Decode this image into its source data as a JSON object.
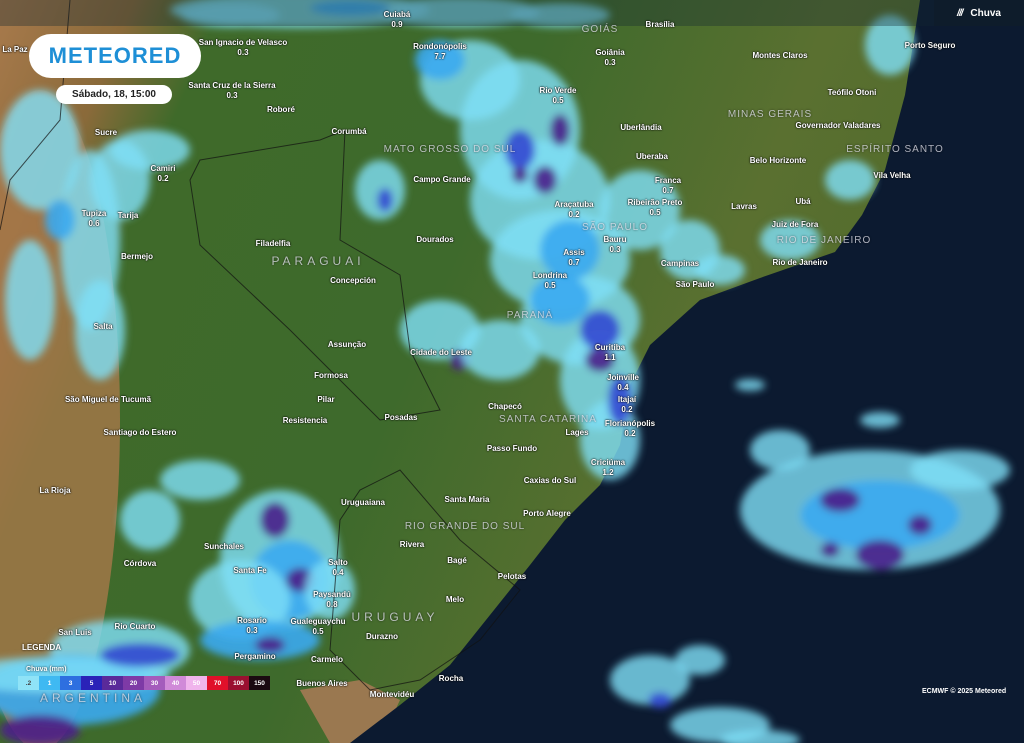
{
  "header": {
    "brand": "METEORED",
    "datetime": "Sábado, 18, 15:00",
    "layer_label": "Chuva",
    "layer_icon": "rain-icon"
  },
  "legend": {
    "title": "LEGENDA",
    "subtitle": "Chuva (mm)",
    "steps": [
      {
        "label": ".2",
        "color": "#8fe3f7"
      },
      {
        "label": "1",
        "color": "#3fb9f2"
      },
      {
        "label": "3",
        "color": "#2e6fe0"
      },
      {
        "label": "5",
        "color": "#2a22b8"
      },
      {
        "label": "10",
        "color": "#5a2a9a"
      },
      {
        "label": "20",
        "color": "#7e3aa6"
      },
      {
        "label": "30",
        "color": "#a45cbc"
      },
      {
        "label": "40",
        "color": "#d08ad8"
      },
      {
        "label": "50",
        "color": "#f0b4ec"
      },
      {
        "label": "70",
        "color": "#e0102a"
      },
      {
        "label": "100",
        "color": "#9a1030"
      },
      {
        "label": "150",
        "color": "#1a0a10"
      }
    ]
  },
  "credit": "ECMWF © 2025 Meteored",
  "regions": [
    "MATO GROSSO DO SUL",
    "GOIÁS",
    "MINAS GERAIS",
    "ESPÍRITO SANTO",
    "RIO DE JANEIRO",
    "SÃO PAULO",
    "PARANÁ",
    "SANTA CATARINA",
    "RIO GRANDE DO SUL",
    "URUGUAY",
    "PARAGUAI",
    "ARGENTINA"
  ],
  "cities": [
    {
      "name": "Cuiabá",
      "value": "0.9"
    },
    {
      "name": "Rondonópolis",
      "value": "7.7"
    },
    {
      "name": "Brasília",
      "value": ""
    },
    {
      "name": "Goiânia",
      "value": "0.3"
    },
    {
      "name": "Rio Verde",
      "value": "0.5"
    },
    {
      "name": "Uberlândia",
      "value": ""
    },
    {
      "name": "Uberaba",
      "value": ""
    },
    {
      "name": "Franca",
      "value": "0.7"
    },
    {
      "name": "Ribeirão Preto",
      "value": "0.5"
    },
    {
      "name": "Araçatuba",
      "value": "0.2"
    },
    {
      "name": "Campo Grande",
      "value": ""
    },
    {
      "name": "Montes Claros",
      "value": ""
    },
    {
      "name": "Porto Seguro",
      "value": ""
    },
    {
      "name": "Teófilo Otoni",
      "value": ""
    },
    {
      "name": "Governador Valadares",
      "value": ""
    },
    {
      "name": "Belo Horizonte",
      "value": ""
    },
    {
      "name": "Vila Velha",
      "value": ""
    },
    {
      "name": "Lavras",
      "value": ""
    },
    {
      "name": "Ubá",
      "value": ""
    },
    {
      "name": "Juiz de Fora",
      "value": ""
    },
    {
      "name": "Rio de Janeiro",
      "value": ""
    },
    {
      "name": "Bauru",
      "value": "0.3"
    },
    {
      "name": "Campinas",
      "value": ""
    },
    {
      "name": "São Paulo",
      "value": ""
    },
    {
      "name": "Assis",
      "value": "0.7"
    },
    {
      "name": "Londrina",
      "value": "0.5"
    },
    {
      "name": "Dourados",
      "value": ""
    },
    {
      "name": "Curitiba",
      "value": "1.1"
    },
    {
      "name": "Cidade do Leste",
      "value": ""
    },
    {
      "name": "Joinville",
      "value": "0.4"
    },
    {
      "name": "Itajaí",
      "value": "0.2"
    },
    {
      "name": "Chapecó",
      "value": ""
    },
    {
      "name": "Lages",
      "value": ""
    },
    {
      "name": "Florianópolis",
      "value": "0.2"
    },
    {
      "name": "Passo Fundo",
      "value": ""
    },
    {
      "name": "Criciúma",
      "value": "1.2"
    },
    {
      "name": "Caxias do Sul",
      "value": ""
    },
    {
      "name": "Santa Maria",
      "value": ""
    },
    {
      "name": "Uruguaiana",
      "value": ""
    },
    {
      "name": "Porto Alegre",
      "value": ""
    },
    {
      "name": "Rivera",
      "value": ""
    },
    {
      "name": "Bagé",
      "value": ""
    },
    {
      "name": "Pelotas",
      "value": ""
    },
    {
      "name": "Salto",
      "value": "0.4"
    },
    {
      "name": "Paysandú",
      "value": "0.8"
    },
    {
      "name": "Melo",
      "value": ""
    },
    {
      "name": "Gualeguaychu",
      "value": "0.5"
    },
    {
      "name": "Durazno",
      "value": ""
    },
    {
      "name": "Carmelo",
      "value": ""
    },
    {
      "name": "Buenos Aires",
      "value": ""
    },
    {
      "name": "Rocha",
      "value": ""
    },
    {
      "name": "Montevidéu",
      "value": ""
    },
    {
      "name": "Rosario",
      "value": "0.3"
    },
    {
      "name": "Santa Fe",
      "value": ""
    },
    {
      "name": "Sunchales",
      "value": ""
    },
    {
      "name": "Córdova",
      "value": ""
    },
    {
      "name": "Rio Cuarto",
      "value": ""
    },
    {
      "name": "San Luis",
      "value": ""
    },
    {
      "name": "Pergamino",
      "value": ""
    },
    {
      "name": "La Rioja",
      "value": ""
    },
    {
      "name": "Santiago do Estero",
      "value": ""
    },
    {
      "name": "São Miguel de Tucumã",
      "value": ""
    },
    {
      "name": "Salta",
      "value": ""
    },
    {
      "name": "Resistencia",
      "value": ""
    },
    {
      "name": "Pilar",
      "value": ""
    },
    {
      "name": "Formosa",
      "value": ""
    },
    {
      "name": "Assunção",
      "value": ""
    },
    {
      "name": "Posadas",
      "value": ""
    },
    {
      "name": "Concepción",
      "value": ""
    },
    {
      "name": "Filadelfia",
      "value": ""
    },
    {
      "name": "Bermejo",
      "value": ""
    },
    {
      "name": "Tupiza",
      "value": "0.6"
    },
    {
      "name": "Tarija",
      "value": ""
    },
    {
      "name": "Camiri",
      "value": "0.2"
    },
    {
      "name": "Sucre",
      "value": ""
    },
    {
      "name": "Roboré",
      "value": ""
    },
    {
      "name": "Corumbá",
      "value": ""
    },
    {
      "name": "San Ignacio de Velasco",
      "value": "0.3"
    },
    {
      "name": "Santa Cruz de la Sierra",
      "value": "0.3"
    },
    {
      "name": "La Paz",
      "value": ""
    }
  ]
}
